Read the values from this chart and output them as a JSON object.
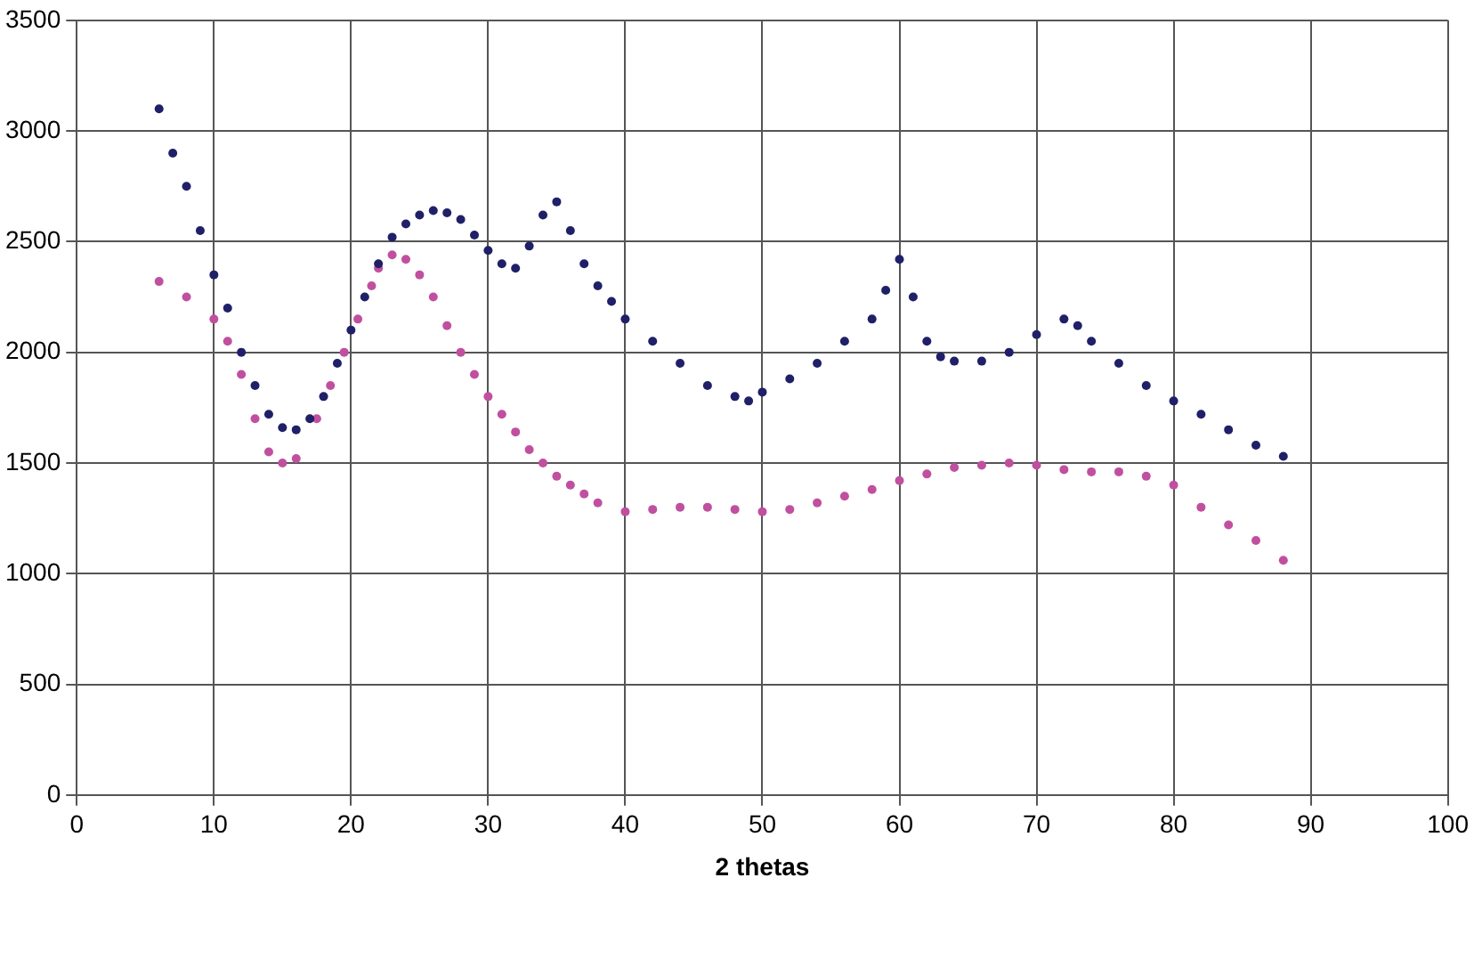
{
  "chart_data": {
    "type": "scatter",
    "xlabel": "2 thetas",
    "xlim": [
      0,
      100
    ],
    "xticks": [
      0,
      10,
      20,
      30,
      40,
      50,
      60,
      70,
      80,
      90,
      100
    ],
    "ylim": [
      0,
      3500
    ],
    "yticks": [
      0,
      500,
      1000,
      1500,
      2000,
      2500,
      3000,
      3500
    ],
    "grid": true,
    "legend": false,
    "marker": "circle",
    "series": [
      {
        "color": "#202068",
        "x": [
          6,
          7,
          8,
          9,
          10,
          11,
          12,
          13,
          14,
          15,
          16,
          17,
          18,
          19,
          20,
          21,
          22,
          23,
          24,
          25,
          26,
          27,
          28,
          29,
          30,
          31,
          32,
          33,
          34,
          35,
          36,
          37,
          38,
          39,
          40,
          42,
          44,
          46,
          48,
          49,
          50,
          52,
          54,
          56,
          58,
          59,
          60,
          61,
          62,
          63,
          64,
          66,
          68,
          70,
          72,
          73,
          74,
          76,
          78,
          80,
          82,
          84,
          86,
          88
        ],
        "values": [
          3100,
          2900,
          2750,
          2550,
          2350,
          2200,
          2000,
          1850,
          1720,
          1660,
          1650,
          1700,
          1800,
          1950,
          2100,
          2250,
          2400,
          2520,
          2580,
          2620,
          2640,
          2630,
          2600,
          2530,
          2460,
          2400,
          2380,
          2480,
          2620,
          2680,
          2550,
          2400,
          2300,
          2230,
          2150,
          2050,
          1950,
          1850,
          1800,
          1780,
          1820,
          1880,
          1950,
          2050,
          2150,
          2280,
          2420,
          2250,
          2050,
          1980,
          1960,
          1960,
          2000,
          2080,
          2150,
          2120,
          2050,
          1950,
          1850,
          1780,
          1720,
          1650,
          1580,
          1530
        ]
      },
      {
        "color": "#c0509f",
        "x": [
          6,
          8,
          10,
          11,
          12,
          13,
          14,
          15,
          16,
          17.5,
          18.5,
          19.5,
          20.5,
          21.5,
          22,
          23,
          24,
          25,
          26,
          27,
          28,
          29,
          30,
          31,
          32,
          33,
          34,
          35,
          36,
          37,
          38,
          40,
          42,
          44,
          46,
          48,
          50,
          52,
          54,
          56,
          58,
          60,
          62,
          64,
          66,
          68,
          70,
          72,
          74,
          76,
          78,
          80,
          82,
          84,
          86,
          88
        ],
        "values": [
          2320,
          2250,
          2150,
          2050,
          1900,
          1700,
          1550,
          1500,
          1520,
          1700,
          1850,
          2000,
          2150,
          2300,
          2380,
          2440,
          2420,
          2350,
          2250,
          2120,
          2000,
          1900,
          1800,
          1720,
          1640,
          1560,
          1500,
          1440,
          1400,
          1360,
          1320,
          1280,
          1290,
          1300,
          1300,
          1290,
          1280,
          1290,
          1320,
          1350,
          1380,
          1420,
          1450,
          1480,
          1490,
          1500,
          1490,
          1470,
          1460,
          1460,
          1440,
          1400,
          1300,
          1220,
          1150,
          1060
        ]
      }
    ]
  }
}
